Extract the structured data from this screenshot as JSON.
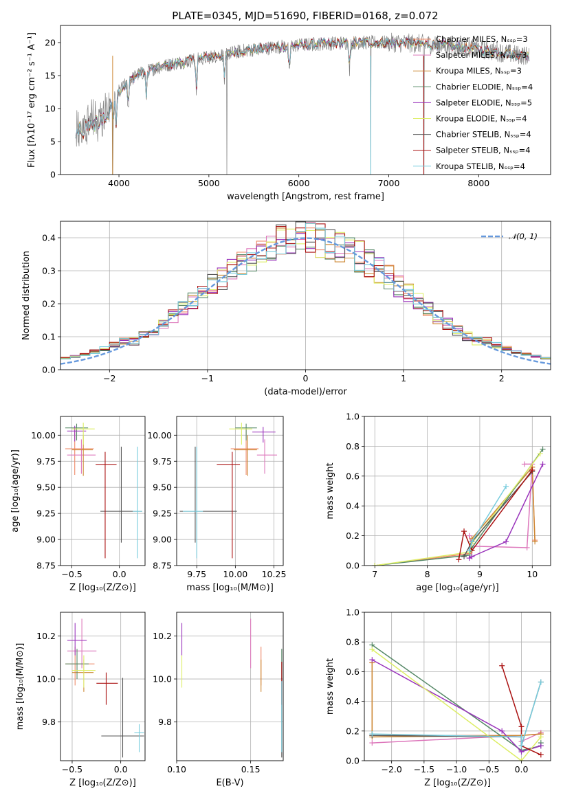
{
  "palette": [
    "#ee8866",
    "#dd77bb",
    "#cc8833",
    "#558866",
    "#9933bb",
    "#ddee66",
    "#555555",
    "#aa1111",
    "#77ccdd"
  ],
  "chart_data": [
    {
      "id": "spectrum",
      "type": "line",
      "title": "PLATE=0345, MJD=51690, FIBERID=0168, z=0.072",
      "xlabel": "wavelength [Angstrom, rest frame]",
      "ylabel": "Flux [fλ10⁻¹⁷ erg cm⁻² s⁻¹ A⁻¹]",
      "xlim": [
        3350,
        8800
      ],
      "ylim": [
        0,
        22.6
      ],
      "xticks": [
        4000,
        5000,
        6000,
        7000,
        8000
      ],
      "yticks": [
        0,
        5,
        10,
        15,
        20
      ],
      "grid": false,
      "legend_position": "top-right",
      "data_color": "#808080",
      "model_anchor": {
        "x": [
          3500,
          3600,
          3700,
          3800,
          3900,
          4000,
          4100,
          4200,
          4400,
          4600,
          4800,
          5000,
          5200,
          5400,
          5600,
          5800,
          6000,
          6200,
          6400,
          6600,
          6800,
          7000,
          7200,
          7400,
          7600,
          7800,
          8000,
          8200,
          8400,
          8550
        ],
        "y": [
          7.5,
          8.0,
          9.0,
          9.8,
          10.8,
          12.6,
          14.0,
          15.1,
          16.1,
          16.8,
          17.3,
          17.8,
          18.3,
          18.8,
          19.1,
          19.4,
          19.6,
          19.8,
          19.9,
          20.0,
          20.0,
          20.0,
          19.9,
          19.8,
          19.6,
          19.3,
          19.0,
          18.6,
          18.2,
          18.0
        ]
      },
      "absorption_features": [
        3934,
        3969,
        4102,
        4304,
        4861,
        5175,
        5894,
        6563
      ],
      "spikes": [
        {
          "x": 3930,
          "y": 0
        },
        {
          "x": 5200,
          "y": 0
        },
        {
          "x": 6800,
          "y": 0
        },
        {
          "x": 7390,
          "y": 0
        }
      ],
      "series": [
        {
          "name": "Chabrier MILES, Nₛₛₚ=3"
        },
        {
          "name": "Salpeter MILES, Nₛₛₚ=3"
        },
        {
          "name": "Kroupa MILES, Nₛₛₚ=3"
        },
        {
          "name": "Chabrier ELODIE, Nₛₛₚ=4"
        },
        {
          "name": "Salpeter ELODIE, Nₛₛₚ=5"
        },
        {
          "name": "Kroupa ELODIE, Nₛₛₚ=4"
        },
        {
          "name": "Chabrier STELIB, Nₛₛₚ=4"
        },
        {
          "name": "Salpeter STELIB, Nₛₛₚ=4"
        },
        {
          "name": "Kroupa STELIB, Nₛₛₚ=4"
        }
      ]
    },
    {
      "id": "residuals",
      "type": "histogram",
      "xlabel": "(data-model)/error",
      "ylabel": "Normed distribution",
      "xlim": [
        -2.5,
        2.5
      ],
      "ylim": [
        0,
        0.45
      ],
      "xticks": [
        -2,
        -1,
        0,
        1,
        2
      ],
      "yticks": [
        0.0,
        0.1,
        0.2,
        0.3,
        0.4
      ],
      "grid": true,
      "bin_edges_range": [
        -2.5,
        2.5
      ],
      "bin_width": 0.1,
      "reference_curve": {
        "label": "𝒩(0, 1)",
        "mean": 0,
        "sigma": 1,
        "color": "#6699dd",
        "style": "dashed"
      },
      "legend_position": "top-right"
    },
    {
      "id": "age-vs-z",
      "type": "errorbar",
      "xlabel": "Z [log₁₀(Z/Z⊙)]",
      "ylabel": "age  [log₁₀(age/yr)]",
      "xlim": [
        -0.62,
        0.27
      ],
      "ylim": [
        8.75,
        10.18
      ],
      "xticks": [
        -0.5,
        0.0
      ],
      "yticks": [
        8.75,
        9.0,
        9.25,
        9.5,
        9.75,
        10.0
      ],
      "grid": true,
      "points": [
        {
          "x": -0.47,
          "y": 9.87,
          "xerr": [
            0.1,
            0.2
          ],
          "yerr": [
            0.25,
            0.2
          ]
        },
        {
          "x": -0.4,
          "y": 9.81,
          "xerr": [
            0.15,
            0.15
          ],
          "yerr": [
            0.18,
            0.15
          ]
        },
        {
          "x": -0.38,
          "y": 9.86,
          "xerr": [
            0.12,
            0.1
          ],
          "yerr": [
            0.25,
            0.14
          ]
        },
        {
          "x": -0.45,
          "y": 10.07,
          "xerr": [
            0.12,
            0.12
          ],
          "yerr": [
            0.12,
            0.04
          ]
        },
        {
          "x": -0.47,
          "y": 10.04,
          "xerr": [
            0.08,
            0.12
          ],
          "yerr": [
            0.1,
            0.05
          ]
        },
        {
          "x": -0.38,
          "y": 10.06,
          "xerr": [
            0.12,
            0.12
          ],
          "yerr": [
            0.15,
            0.06
          ]
        },
        {
          "x": 0.02,
          "y": 9.27,
          "xerr": [
            0.22,
            0.22
          ],
          "yerr": [
            0.3,
            0.62
          ]
        },
        {
          "x": -0.15,
          "y": 9.72,
          "xerr": [
            0.1,
            0.12
          ],
          "yerr": [
            0.9,
            0.12
          ]
        },
        {
          "x": 0.19,
          "y": 9.27,
          "xerr": [
            0.05,
            0.05
          ],
          "yerr": [
            0.45,
            0.62
          ]
        }
      ]
    },
    {
      "id": "age-vs-mass",
      "type": "errorbar",
      "xlabel": "mass [log₁₀(M/M⊙)]",
      "ylabel": "",
      "xlim": [
        9.62,
        10.31
      ],
      "ylim": [
        8.75,
        10.18
      ],
      "xticks": [
        9.75,
        10.0,
        10.25
      ],
      "yticks": [
        8.75,
        9.0,
        9.25,
        9.5,
        9.75,
        10.0
      ],
      "grid": true,
      "points": [
        {
          "x": 10.07,
          "y": 9.87,
          "xerr": [
            0.1,
            0.08
          ],
          "yerr": [
            0.25,
            0.2
          ]
        },
        {
          "x": 10.19,
          "y": 9.81,
          "xerr": [
            0.05,
            0.08
          ],
          "yerr": [
            0.18,
            0.15
          ]
        },
        {
          "x": 10.08,
          "y": 9.86,
          "xerr": [
            0.09,
            0.06
          ],
          "yerr": [
            0.25,
            0.14
          ]
        },
        {
          "x": 10.07,
          "y": 10.07,
          "xerr": [
            0.07,
            0.07
          ],
          "yerr": [
            0.12,
            0.04
          ]
        },
        {
          "x": 10.18,
          "y": 10.03,
          "xerr": [
            0.07,
            0.08
          ],
          "yerr": [
            0.1,
            0.05
          ]
        },
        {
          "x": 10.04,
          "y": 10.06,
          "xerr": [
            0.08,
            0.07
          ],
          "yerr": [
            0.15,
            0.06
          ]
        },
        {
          "x": 9.74,
          "y": 9.27,
          "xerr": [
            0.1,
            0.27
          ],
          "yerr": [
            0.3,
            0.62
          ]
        },
        {
          "x": 9.98,
          "y": 9.72,
          "xerr": [
            0.1,
            0.05
          ],
          "yerr": [
            0.9,
            0.12
          ]
        },
        {
          "x": 9.75,
          "y": 9.27,
          "xerr": [
            0.09,
            0.04
          ],
          "yerr": [
            0.45,
            0.62
          ]
        }
      ]
    },
    {
      "id": "weight-vs-age",
      "type": "line",
      "xlabel": "age  [log₁₀(age/yr)]",
      "ylabel": "mass weight",
      "xlim": [
        6.8,
        10.35
      ],
      "ylim": [
        0,
        1.0
      ],
      "xticks": [
        7,
        8,
        9,
        10
      ],
      "yticks": [
        0.0,
        0.2,
        0.4,
        0.6,
        0.8,
        1.0
      ],
      "grid": true,
      "series": [
        {
          "x": [
            7.0,
            8.8,
            8.85,
            10.0,
            10.05
          ],
          "y": [
            0.0,
            0.08,
            0.18,
            0.66,
            0.17
          ]
        },
        {
          "x": [
            8.8,
            8.85,
            9.9,
            10.0,
            9.85
          ],
          "y": [
            0.2,
            0.13,
            0.12,
            0.68,
            0.68
          ]
        },
        {
          "x": [
            8.8,
            8.85,
            10.0,
            10.05
          ],
          "y": [
            0.09,
            0.18,
            0.66,
            0.16
          ]
        },
        {
          "x": [
            7.0,
            8.8,
            8.85,
            10.2
          ],
          "y": [
            0.0,
            0.07,
            0.12,
            0.78
          ]
        },
        {
          "x": [
            8.8,
            8.85,
            9.5,
            10.2
          ],
          "y": [
            0.05,
            0.06,
            0.16,
            0.68
          ]
        },
        {
          "x": [
            7.0,
            8.8,
            8.85,
            10.15
          ],
          "y": [
            0.0,
            0.09,
            0.15,
            0.75
          ]
        },
        {
          "x": [
            8.7,
            8.85,
            10.0
          ],
          "y": [
            0.06,
            0.16,
            0.63
          ]
        },
        {
          "x": [
            8.6,
            8.7,
            8.85,
            10.0
          ],
          "y": [
            0.04,
            0.23,
            0.1,
            0.64
          ]
        },
        {
          "x": [
            8.8,
            8.85,
            9.5
          ],
          "y": [
            0.1,
            0.16,
            0.53
          ]
        }
      ]
    },
    {
      "id": "mass-vs-z",
      "type": "errorbar",
      "xlabel": "Z [log₁₀(Z/Z⊙)]",
      "ylabel": "mass [log₁₀(M/M⊙)]",
      "xlim": [
        -0.62,
        0.25
      ],
      "ylim": [
        9.62,
        10.31
      ],
      "xticks": [
        -0.5,
        0.0
      ],
      "yticks": [
        9.8,
        10.0,
        10.2
      ],
      "grid": true,
      "points": [
        {
          "x": -0.47,
          "y": 10.07,
          "xerr": [
            0.1,
            0.2
          ],
          "yerr": [
            0.1,
            0.08
          ]
        },
        {
          "x": -0.4,
          "y": 10.13,
          "xerr": [
            0.15,
            0.15
          ],
          "yerr": [
            0.08,
            0.15
          ]
        },
        {
          "x": -0.38,
          "y": 10.03,
          "xerr": [
            0.12,
            0.1
          ],
          "yerr": [
            0.09,
            0.06
          ]
        },
        {
          "x": -0.45,
          "y": 10.07,
          "xerr": [
            0.12,
            0.12
          ],
          "yerr": [
            0.07,
            0.07
          ]
        },
        {
          "x": -0.47,
          "y": 10.18,
          "xerr": [
            0.08,
            0.12
          ],
          "yerr": [
            0.07,
            0.08
          ]
        },
        {
          "x": -0.38,
          "y": 10.04,
          "xerr": [
            0.12,
            0.12
          ],
          "yerr": [
            0.08,
            0.07
          ]
        },
        {
          "x": 0.02,
          "y": 9.735,
          "xerr": [
            0.22,
            0.22
          ],
          "yerr": [
            0.1,
            0.27
          ]
        },
        {
          "x": -0.15,
          "y": 9.98,
          "xerr": [
            0.1,
            0.12
          ],
          "yerr": [
            0.1,
            0.05
          ]
        },
        {
          "x": 0.19,
          "y": 9.75,
          "xerr": [
            0.05,
            0.05
          ],
          "yerr": [
            0.09,
            0.04
          ]
        }
      ]
    },
    {
      "id": "mass-vs-ebv",
      "type": "errorbar",
      "xlabel": "E(B-V)",
      "ylabel": "",
      "xlim": [
        0.1,
        0.172
      ],
      "ylim": [
        9.62,
        10.31
      ],
      "xticks": [
        0.1,
        0.15
      ],
      "yticks": [
        9.8,
        10.0,
        10.2
      ],
      "grid": true,
      "points": [
        {
          "x": 0.157,
          "y": 10.07,
          "xerr": [
            0,
            0
          ],
          "yerr": [
            0.1,
            0.08
          ]
        },
        {
          "x": 0.15,
          "y": 10.13,
          "xerr": [
            0,
            0
          ],
          "yerr": [
            0.08,
            0.15
          ]
        },
        {
          "x": 0.157,
          "y": 10.03,
          "xerr": [
            0,
            0
          ],
          "yerr": [
            0.09,
            0.06
          ]
        },
        {
          "x": 0.171,
          "y": 10.07,
          "xerr": [
            0,
            0
          ],
          "yerr": [
            0.07,
            0.07
          ]
        },
        {
          "x": 0.1035,
          "y": 10.18,
          "xerr": [
            0,
            0
          ],
          "yerr": [
            0.07,
            0.08
          ]
        },
        {
          "x": 0.1035,
          "y": 10.04,
          "xerr": [
            0,
            0
          ],
          "yerr": [
            0.08,
            0.07
          ]
        },
        {
          "x": 0.171,
          "y": 9.735,
          "xerr": [
            0,
            0
          ],
          "yerr": [
            0.1,
            0.27
          ]
        },
        {
          "x": 0.171,
          "y": 9.98,
          "xerr": [
            0,
            0
          ],
          "yerr": [
            0.1,
            0.1
          ]
        },
        {
          "x": 0.171,
          "y": 9.75,
          "xerr": [
            0,
            0
          ],
          "yerr": [
            0.09,
            0.24
          ]
        }
      ]
    },
    {
      "id": "weight-vs-z",
      "type": "line",
      "xlabel": "Z [log₁₀(Z/Z⊙)]",
      "ylabel": "mass weight",
      "xlim": [
        -2.42,
        0.45
      ],
      "ylim": [
        0,
        1.0
      ],
      "xticks": [
        -2.0,
        -1.5,
        -1.0,
        -0.5,
        0.0
      ],
      "yticks": [
        0.0,
        0.2,
        0.4,
        0.6,
        0.8,
        1.0
      ],
      "grid": true,
      "series": [
        {
          "x": [
            -2.3,
            -2.3,
            0.0,
            0.3
          ],
          "y": [
            0.66,
            0.17,
            0.17,
            0.18
          ]
        },
        {
          "x": [
            -2.3,
            0.0,
            0.0,
            0.3
          ],
          "y": [
            0.12,
            0.17,
            0.13,
            0.19
          ]
        },
        {
          "x": [
            -2.3,
            -2.3,
            0.0,
            0.3
          ],
          "y": [
            0.66,
            0.16,
            0.17,
            0.18
          ]
        },
        {
          "x": [
            -2.3,
            0.0,
            0.3,
            0.3
          ],
          "y": [
            0.78,
            0.07,
            0.1,
            0.12
          ]
        },
        {
          "x": [
            -2.3,
            -0.3,
            0.0,
            0.3
          ],
          "y": [
            0.68,
            0.2,
            0.06,
            0.1
          ]
        },
        {
          "x": [
            -2.3,
            0.0,
            0.3
          ],
          "y": [
            0.75,
            0.0,
            0.16
          ]
        },
        {
          "x": [
            -2.3,
            0.0,
            0.0,
            0.3
          ],
          "y": [
            0.17,
            0.16,
            0.1,
            0.53
          ]
        },
        {
          "x": [
            -0.3,
            0.0,
            0.0,
            0.3
          ],
          "y": [
            0.64,
            0.23,
            0.1,
            0.04
          ]
        },
        {
          "x": [
            -2.3,
            0.0,
            0.0,
            0.3
          ],
          "y": [
            0.18,
            0.16,
            0.1,
            0.53
          ]
        }
      ]
    }
  ]
}
